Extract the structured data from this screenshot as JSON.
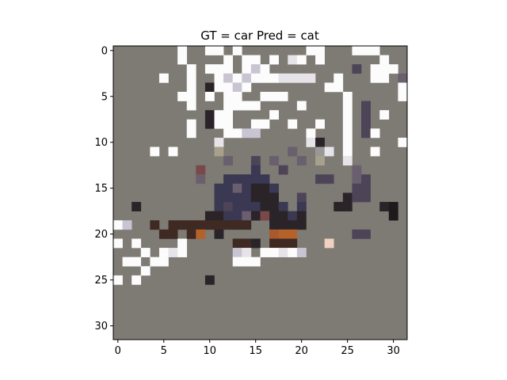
{
  "chart_data": {
    "type": "heatmap",
    "title": "GT = car Pred = cat",
    "xlabel": "",
    "ylabel": "",
    "grid": false,
    "xlim": [
      -0.5,
      31.5
    ],
    "ylim": [
      31.5,
      -0.5
    ],
    "xticks": [
      0,
      5,
      10,
      15,
      20,
      25,
      30
    ],
    "yticks": [
      0,
      5,
      10,
      15,
      20,
      25,
      30
    ],
    "shape": [
      32,
      32
    ],
    "colors": {
      "background": "#7e7a74",
      "frame": "#000000",
      "white": "#fcfcfc",
      "light": "#e6e4e8",
      "lavender": "#c8c4d2",
      "mauve": "#6a5f6e",
      "purple": "#4e4458",
      "navy": "#3a3852",
      "dark": "#2a2428",
      "black": "#1e1a1c",
      "brown": "#3e2a22",
      "orange": "#b4622a",
      "rust": "#a85a2e",
      "olive": "#a8a08c",
      "redbrown": "#7a4848",
      "peach": "#f0d0c0",
      "gray": "#9a9896"
    },
    "cells": [
      {
        "r": 0,
        "c": 7,
        "color": "white"
      },
      {
        "r": 0,
        "c": 10,
        "color": "white"
      },
      {
        "r": 0,
        "c": 11,
        "color": "white"
      },
      {
        "r": 0,
        "c": 13,
        "color": "white"
      },
      {
        "r": 0,
        "c": 21,
        "color": "white"
      },
      {
        "r": 0,
        "c": 22,
        "color": "white"
      },
      {
        "r": 0,
        "c": 26,
        "color": "white"
      },
      {
        "r": 0,
        "c": 27,
        "color": "white"
      },
      {
        "r": 0,
        "c": 28,
        "color": "white"
      },
      {
        "r": 1,
        "c": 7,
        "color": "white"
      },
      {
        "r": 1,
        "c": 12,
        "color": "white"
      },
      {
        "r": 1,
        "c": 14,
        "color": "white"
      },
      {
        "r": 1,
        "c": 15,
        "color": "white"
      },
      {
        "r": 1,
        "c": 17,
        "color": "white"
      },
      {
        "r": 1,
        "c": 19,
        "color": "light"
      },
      {
        "r": 1,
        "c": 20,
        "color": "white"
      },
      {
        "r": 1,
        "c": 22,
        "color": "white"
      },
      {
        "r": 1,
        "c": 29,
        "color": "white"
      },
      {
        "r": 2,
        "c": 8,
        "color": "white"
      },
      {
        "r": 2,
        "c": 10,
        "color": "white"
      },
      {
        "r": 2,
        "c": 11,
        "color": "white"
      },
      {
        "r": 2,
        "c": 12,
        "color": "white"
      },
      {
        "r": 2,
        "c": 14,
        "color": "white"
      },
      {
        "r": 2,
        "c": 15,
        "color": "lavender"
      },
      {
        "r": 2,
        "c": 16,
        "color": "white"
      },
      {
        "r": 2,
        "c": 26,
        "color": "purple"
      },
      {
        "r": 2,
        "c": 28,
        "color": "white"
      },
      {
        "r": 2,
        "c": 29,
        "color": "white"
      },
      {
        "r": 2,
        "c": 30,
        "color": "white"
      },
      {
        "r": 3,
        "c": 5,
        "color": "white"
      },
      {
        "r": 3,
        "c": 8,
        "color": "white"
      },
      {
        "r": 3,
        "c": 11,
        "color": "white"
      },
      {
        "r": 3,
        "c": 12,
        "color": "lavender"
      },
      {
        "r": 3,
        "c": 13,
        "color": "white"
      },
      {
        "r": 3,
        "c": 14,
        "color": "lavender"
      },
      {
        "r": 3,
        "c": 15,
        "color": "white"
      },
      {
        "r": 3,
        "c": 16,
        "color": "white"
      },
      {
        "r": 3,
        "c": 17,
        "color": "white"
      },
      {
        "r": 3,
        "c": 18,
        "color": "light"
      },
      {
        "r": 3,
        "c": 19,
        "color": "light"
      },
      {
        "r": 3,
        "c": 20,
        "color": "light"
      },
      {
        "r": 3,
        "c": 21,
        "color": "light"
      },
      {
        "r": 3,
        "c": 24,
        "color": "white"
      },
      {
        "r": 3,
        "c": 28,
        "color": "white"
      },
      {
        "r": 3,
        "c": 29,
        "color": "white"
      },
      {
        "r": 3,
        "c": 31,
        "color": "mauve"
      },
      {
        "r": 4,
        "c": 8,
        "color": "white"
      },
      {
        "r": 4,
        "c": 10,
        "color": "dark"
      },
      {
        "r": 4,
        "c": 11,
        "color": "white"
      },
      {
        "r": 4,
        "c": 12,
        "color": "white"
      },
      {
        "r": 4,
        "c": 13,
        "color": "lavender"
      },
      {
        "r": 4,
        "c": 14,
        "color": "white"
      },
      {
        "r": 4,
        "c": 23,
        "color": "white"
      },
      {
        "r": 4,
        "c": 24,
        "color": "white"
      },
      {
        "r": 4,
        "c": 31,
        "color": "white"
      },
      {
        "r": 5,
        "c": 7,
        "color": "white"
      },
      {
        "r": 5,
        "c": 8,
        "color": "white"
      },
      {
        "r": 5,
        "c": 10,
        "color": "white"
      },
      {
        "r": 5,
        "c": 12,
        "color": "white"
      },
      {
        "r": 5,
        "c": 13,
        "color": "white"
      },
      {
        "r": 5,
        "c": 16,
        "color": "white"
      },
      {
        "r": 5,
        "c": 17,
        "color": "white"
      },
      {
        "r": 5,
        "c": 18,
        "color": "white"
      },
      {
        "r": 5,
        "c": 25,
        "color": "white"
      },
      {
        "r": 5,
        "c": 31,
        "color": "white"
      },
      {
        "r": 6,
        "c": 8,
        "color": "white"
      },
      {
        "r": 6,
        "c": 12,
        "color": "white"
      },
      {
        "r": 6,
        "c": 13,
        "color": "white"
      },
      {
        "r": 6,
        "c": 14,
        "color": "white"
      },
      {
        "r": 6,
        "c": 15,
        "color": "white"
      },
      {
        "r": 6,
        "c": 20,
        "color": "white"
      },
      {
        "r": 6,
        "c": 25,
        "color": "white"
      },
      {
        "r": 6,
        "c": 27,
        "color": "purple"
      },
      {
        "r": 7,
        "c": 10,
        "color": "dark"
      },
      {
        "r": 7,
        "c": 11,
        "color": "white"
      },
      {
        "r": 7,
        "c": 12,
        "color": "white"
      },
      {
        "r": 7,
        "c": 17,
        "color": "white"
      },
      {
        "r": 7,
        "c": 25,
        "color": "white"
      },
      {
        "r": 7,
        "c": 27,
        "color": "purple"
      },
      {
        "r": 7,
        "c": 29,
        "color": "white"
      },
      {
        "r": 8,
        "c": 8,
        "color": "white"
      },
      {
        "r": 8,
        "c": 10,
        "color": "dark"
      },
      {
        "r": 8,
        "c": 11,
        "color": "white"
      },
      {
        "r": 8,
        "c": 12,
        "color": "white"
      },
      {
        "r": 8,
        "c": 15,
        "color": "white"
      },
      {
        "r": 8,
        "c": 16,
        "color": "white"
      },
      {
        "r": 8,
        "c": 19,
        "color": "white"
      },
      {
        "r": 8,
        "c": 22,
        "color": "white"
      },
      {
        "r": 8,
        "c": 25,
        "color": "white"
      },
      {
        "r": 8,
        "c": 27,
        "color": "purple"
      },
      {
        "r": 9,
        "c": 8,
        "color": "white"
      },
      {
        "r": 9,
        "c": 12,
        "color": "white"
      },
      {
        "r": 9,
        "c": 13,
        "color": "white"
      },
      {
        "r": 9,
        "c": 14,
        "color": "lavender"
      },
      {
        "r": 9,
        "c": 15,
        "color": "lavender"
      },
      {
        "r": 9,
        "c": 21,
        "color": "white"
      },
      {
        "r": 9,
        "c": 25,
        "color": "white"
      },
      {
        "r": 9,
        "c": 27,
        "color": "purple"
      },
      {
        "r": 9,
        "c": 28,
        "color": "white"
      },
      {
        "r": 10,
        "c": 11,
        "color": "light"
      },
      {
        "r": 10,
        "c": 21,
        "color": "light"
      },
      {
        "r": 10,
        "c": 22,
        "color": "dark"
      },
      {
        "r": 10,
        "c": 25,
        "color": "white"
      },
      {
        "r": 10,
        "c": 31,
        "color": "white"
      },
      {
        "r": 11,
        "c": 4,
        "color": "white"
      },
      {
        "r": 11,
        "c": 6,
        "color": "white"
      },
      {
        "r": 11,
        "c": 11,
        "color": "olive"
      },
      {
        "r": 11,
        "c": 19,
        "color": "mauve"
      },
      {
        "r": 11,
        "c": 22,
        "color": "gray"
      },
      {
        "r": 11,
        "c": 23,
        "color": "light"
      },
      {
        "r": 11,
        "c": 25,
        "color": "white"
      },
      {
        "r": 11,
        "c": 28,
        "color": "white"
      },
      {
        "r": 12,
        "c": 12,
        "color": "mauve"
      },
      {
        "r": 12,
        "c": 15,
        "color": "purple"
      },
      {
        "r": 12,
        "c": 17,
        "color": "mauve"
      },
      {
        "r": 12,
        "c": 20,
        "color": "mauve"
      },
      {
        "r": 12,
        "c": 22,
        "color": "olive"
      },
      {
        "r": 12,
        "c": 25,
        "color": "light"
      },
      {
        "r": 13,
        "c": 9,
        "color": "redbrown"
      },
      {
        "r": 13,
        "c": 15,
        "color": "navy"
      },
      {
        "r": 13,
        "c": 18,
        "color": "purple"
      },
      {
        "r": 13,
        "c": 26,
        "color": "mauve"
      },
      {
        "r": 14,
        "c": 9,
        "color": "mauve"
      },
      {
        "r": 14,
        "c": 12,
        "color": "navy"
      },
      {
        "r": 14,
        "c": 13,
        "color": "navy"
      },
      {
        "r": 14,
        "c": 14,
        "color": "navy"
      },
      {
        "r": 14,
        "c": 15,
        "color": "navy"
      },
      {
        "r": 14,
        "c": 16,
        "color": "navy"
      },
      {
        "r": 14,
        "c": 22,
        "color": "purple"
      },
      {
        "r": 14,
        "c": 23,
        "color": "purple"
      },
      {
        "r": 14,
        "c": 26,
        "color": "mauve"
      },
      {
        "r": 14,
        "c": 27,
        "color": "purple"
      },
      {
        "r": 15,
        "c": 11,
        "color": "navy"
      },
      {
        "r": 15,
        "c": 12,
        "color": "navy"
      },
      {
        "r": 15,
        "c": 13,
        "color": "mauve"
      },
      {
        "r": 15,
        "c": 14,
        "color": "navy"
      },
      {
        "r": 15,
        "c": 15,
        "color": "dark"
      },
      {
        "r": 15,
        "c": 16,
        "color": "dark"
      },
      {
        "r": 15,
        "c": 17,
        "color": "navy"
      },
      {
        "r": 15,
        "c": 26,
        "color": "purple"
      },
      {
        "r": 15,
        "c": 27,
        "color": "purple"
      },
      {
        "r": 16,
        "c": 11,
        "color": "navy"
      },
      {
        "r": 16,
        "c": 12,
        "color": "navy"
      },
      {
        "r": 16,
        "c": 13,
        "color": "navy"
      },
      {
        "r": 16,
        "c": 14,
        "color": "navy"
      },
      {
        "r": 16,
        "c": 15,
        "color": "dark"
      },
      {
        "r": 16,
        "c": 16,
        "color": "dark"
      },
      {
        "r": 16,
        "c": 17,
        "color": "dark"
      },
      {
        "r": 16,
        "c": 20,
        "color": "purple"
      },
      {
        "r": 16,
        "c": 25,
        "color": "dark"
      },
      {
        "r": 16,
        "c": 26,
        "color": "purple"
      },
      {
        "r": 16,
        "c": 27,
        "color": "purple"
      },
      {
        "r": 17,
        "c": 2,
        "color": "dark"
      },
      {
        "r": 17,
        "c": 11,
        "color": "navy"
      },
      {
        "r": 17,
        "c": 12,
        "color": "purple"
      },
      {
        "r": 17,
        "c": 13,
        "color": "navy"
      },
      {
        "r": 17,
        "c": 14,
        "color": "navy"
      },
      {
        "r": 17,
        "c": 15,
        "color": "navy"
      },
      {
        "r": 17,
        "c": 16,
        "color": "dark"
      },
      {
        "r": 17,
        "c": 17,
        "color": "dark"
      },
      {
        "r": 17,
        "c": 18,
        "color": "navy"
      },
      {
        "r": 17,
        "c": 20,
        "color": "navy"
      },
      {
        "r": 17,
        "c": 24,
        "color": "dark"
      },
      {
        "r": 17,
        "c": 25,
        "color": "dark"
      },
      {
        "r": 17,
        "c": 29,
        "color": "dark"
      },
      {
        "r": 17,
        "c": 30,
        "color": "black"
      },
      {
        "r": 18,
        "c": 10,
        "color": "dark"
      },
      {
        "r": 18,
        "c": 11,
        "color": "dark"
      },
      {
        "r": 18,
        "c": 12,
        "color": "navy"
      },
      {
        "r": 18,
        "c": 13,
        "color": "navy"
      },
      {
        "r": 18,
        "c": 14,
        "color": "mauve"
      },
      {
        "r": 18,
        "c": 15,
        "color": "dark"
      },
      {
        "r": 18,
        "c": 16,
        "color": "redbrown"
      },
      {
        "r": 18,
        "c": 17,
        "color": "dark"
      },
      {
        "r": 18,
        "c": 18,
        "color": "dark"
      },
      {
        "r": 18,
        "c": 19,
        "color": "navy"
      },
      {
        "r": 18,
        "c": 20,
        "color": "dark"
      },
      {
        "r": 18,
        "c": 30,
        "color": "black"
      },
      {
        "r": 19,
        "c": 0,
        "color": "white"
      },
      {
        "r": 19,
        "c": 1,
        "color": "lavender"
      },
      {
        "r": 19,
        "c": 4,
        "color": "brown"
      },
      {
        "r": 19,
        "c": 6,
        "color": "brown"
      },
      {
        "r": 19,
        "c": 7,
        "color": "brown"
      },
      {
        "r": 19,
        "c": 8,
        "color": "brown"
      },
      {
        "r": 19,
        "c": 9,
        "color": "brown"
      },
      {
        "r": 19,
        "c": 10,
        "color": "brown"
      },
      {
        "r": 19,
        "c": 11,
        "color": "brown"
      },
      {
        "r": 19,
        "c": 12,
        "color": "brown"
      },
      {
        "r": 19,
        "c": 13,
        "color": "brown"
      },
      {
        "r": 19,
        "c": 14,
        "color": "brown"
      },
      {
        "r": 19,
        "c": 17,
        "color": "dark"
      },
      {
        "r": 19,
        "c": 18,
        "color": "dark"
      },
      {
        "r": 19,
        "c": 19,
        "color": "dark"
      },
      {
        "r": 19,
        "c": 20,
        "color": "dark"
      },
      {
        "r": 20,
        "c": 5,
        "color": "brown"
      },
      {
        "r": 20,
        "c": 6,
        "color": "brown"
      },
      {
        "r": 20,
        "c": 8,
        "color": "brown"
      },
      {
        "r": 20,
        "c": 9,
        "color": "orange"
      },
      {
        "r": 20,
        "c": 11,
        "color": "dark"
      },
      {
        "r": 20,
        "c": 17,
        "color": "rust"
      },
      {
        "r": 20,
        "c": 18,
        "color": "orange"
      },
      {
        "r": 20,
        "c": 19,
        "color": "orange"
      },
      {
        "r": 20,
        "c": 27,
        "color": "purple"
      },
      {
        "r": 20,
        "c": 26,
        "color": "purple"
      },
      {
        "r": 21,
        "c": 0,
        "color": "white"
      },
      {
        "r": 21,
        "c": 2,
        "color": "white"
      },
      {
        "r": 21,
        "c": 7,
        "color": "white"
      },
      {
        "r": 21,
        "c": 13,
        "color": "brown"
      },
      {
        "r": 21,
        "c": 14,
        "color": "brown"
      },
      {
        "r": 21,
        "c": 15,
        "color": "dark"
      },
      {
        "r": 21,
        "c": 17,
        "color": "brown"
      },
      {
        "r": 21,
        "c": 18,
        "color": "brown"
      },
      {
        "r": 21,
        "c": 19,
        "color": "brown"
      },
      {
        "r": 21,
        "c": 23,
        "color": "peach"
      },
      {
        "r": 22,
        "c": 3,
        "color": "white"
      },
      {
        "r": 22,
        "c": 5,
        "color": "white"
      },
      {
        "r": 22,
        "c": 6,
        "color": "light"
      },
      {
        "r": 22,
        "c": 7,
        "color": "white"
      },
      {
        "r": 22,
        "c": 13,
        "color": "lavender"
      },
      {
        "r": 22,
        "c": 14,
        "color": "light"
      },
      {
        "r": 22,
        "c": 16,
        "color": "white"
      },
      {
        "r": 22,
        "c": 17,
        "color": "white"
      },
      {
        "r": 22,
        "c": 18,
        "color": "light"
      },
      {
        "r": 22,
        "c": 19,
        "color": "white"
      },
      {
        "r": 22,
        "c": 20,
        "color": "lavender"
      },
      {
        "r": 23,
        "c": 1,
        "color": "white"
      },
      {
        "r": 23,
        "c": 2,
        "color": "white"
      },
      {
        "r": 23,
        "c": 4,
        "color": "white"
      },
      {
        "r": 23,
        "c": 5,
        "color": "white"
      },
      {
        "r": 23,
        "c": 13,
        "color": "white"
      },
      {
        "r": 23,
        "c": 14,
        "color": "white"
      },
      {
        "r": 23,
        "c": 15,
        "color": "white"
      },
      {
        "r": 24,
        "c": 3,
        "color": "white"
      },
      {
        "r": 25,
        "c": 0,
        "color": "white"
      },
      {
        "r": 25,
        "c": 2,
        "color": "white"
      },
      {
        "r": 25,
        "c": 10,
        "color": "dark"
      }
    ]
  }
}
